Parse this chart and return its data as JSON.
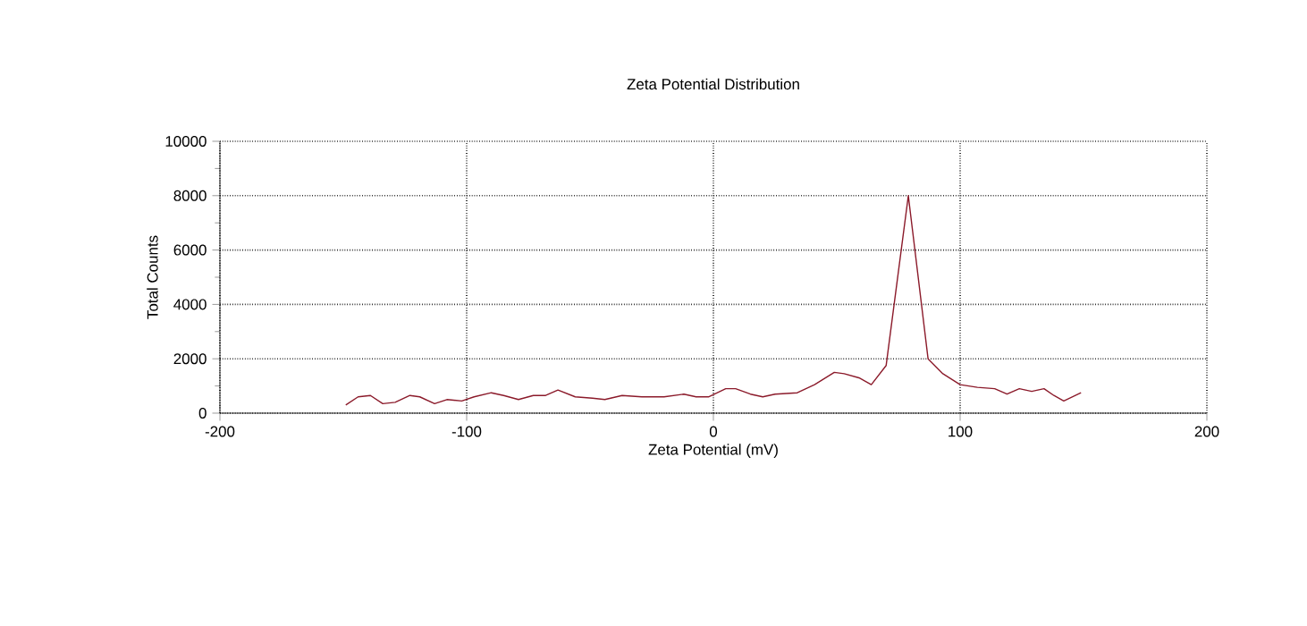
{
  "chart_data": {
    "type": "line",
    "title": "Zeta Potential Distribution",
    "xlabel": "Zeta Potential (mV)",
    "ylabel": "Total Counts",
    "xlim": [
      -200,
      200
    ],
    "xticks": [
      -200,
      -100,
      0,
      100,
      200
    ],
    "ylim": [
      0,
      10000
    ],
    "yticks": [
      0,
      2000,
      4000,
      6000,
      8000,
      10000
    ],
    "grid": true,
    "series": [
      {
        "color": "#8b1a2a",
        "x": [
          -149,
          -144,
          -139,
          -134,
          -129,
          -123,
          -119,
          -113,
          -108,
          -102,
          -97,
          -90,
          -85,
          -79,
          -73,
          -68,
          -63,
          -56,
          -49,
          -44,
          -37,
          -29,
          -20,
          -12,
          -7,
          -2,
          5,
          9,
          15,
          20,
          25,
          34,
          41,
          49,
          53,
          59,
          64,
          70,
          79,
          87,
          93,
          100,
          107,
          114,
          119,
          124,
          129,
          134,
          138,
          142,
          149
        ],
        "values": [
          300,
          600,
          650,
          350,
          400,
          650,
          600,
          350,
          500,
          450,
          600,
          750,
          650,
          500,
          650,
          650,
          850,
          600,
          550,
          500,
          650,
          600,
          600,
          700,
          600,
          600,
          900,
          900,
          700,
          600,
          700,
          750,
          1050,
          1500,
          1450,
          1300,
          1050,
          1750,
          8000,
          2000,
          1450,
          1050,
          950,
          900,
          700,
          900,
          800,
          900,
          650,
          450,
          750
        ]
      }
    ]
  }
}
